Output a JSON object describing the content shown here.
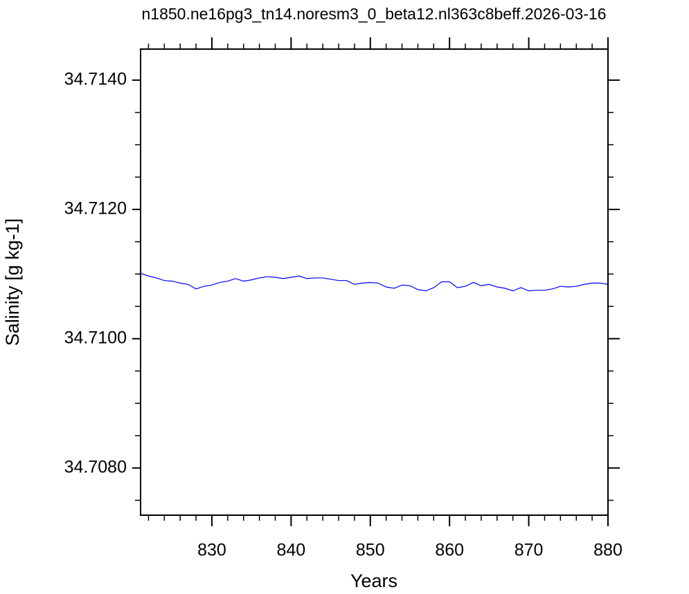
{
  "chart_data": {
    "type": "line",
    "title": "n1850.ne16pg3_tn14.noresm3_0_beta12.nl363c8beff.2026-03-16",
    "x_label": "Years",
    "y_label": "Salinity [g kg-1]",
    "x": [
      821,
      822,
      823,
      824,
      825,
      826,
      827,
      828,
      829,
      830,
      831,
      832,
      833,
      834,
      835,
      836,
      837,
      838,
      839,
      840,
      841,
      842,
      843,
      844,
      845,
      846,
      847,
      848,
      849,
      850,
      851,
      852,
      853,
      854,
      855,
      856,
      857,
      858,
      859,
      860,
      861,
      862,
      863,
      864,
      865,
      866,
      867,
      868,
      869,
      870,
      871,
      872,
      873,
      874,
      875,
      876,
      877,
      878,
      879,
      880
    ],
    "series": [
      {
        "name": "Salinity",
        "color": "#0000ff",
        "values": [
          34.71101,
          34.71097,
          34.71094,
          34.7109,
          34.71089,
          34.71086,
          34.71084,
          34.71077,
          34.71081,
          34.71083,
          34.71087,
          34.71089,
          34.71093,
          34.71089,
          34.71091,
          34.71094,
          34.71096,
          34.71095,
          34.71093,
          34.71095,
          34.71097,
          34.71093,
          34.71094,
          34.71094,
          34.71092,
          34.7109,
          34.7109,
          34.71084,
          34.71086,
          34.71087,
          34.71086,
          34.7108,
          34.71078,
          34.71083,
          34.71082,
          34.71076,
          34.71074,
          34.71079,
          34.71088,
          34.71088,
          34.71079,
          34.71081,
          34.71087,
          34.71082,
          34.71084,
          34.7108,
          34.71078,
          34.71074,
          34.71079,
          34.71074,
          34.71075,
          34.71075,
          34.71077,
          34.71081,
          34.7108,
          34.71081,
          34.71084,
          34.71086,
          34.71086,
          34.71084
        ]
      }
    ],
    "xlim": [
      821,
      880
    ],
    "ylim": [
      34.70727,
      34.71448
    ],
    "xticks": [
      830,
      840,
      850,
      860,
      870,
      880
    ],
    "yticks": [
      {
        "value": 34.708,
        "label": "34.7080"
      },
      {
        "value": 34.71,
        "label": "34.7100"
      },
      {
        "value": 34.712,
        "label": "34.7120"
      },
      {
        "value": 34.714,
        "label": "34.7140"
      }
    ],
    "xminorticks": [
      822,
      824,
      826,
      828,
      832,
      834,
      836,
      838,
      842,
      844,
      846,
      848,
      852,
      854,
      856,
      858,
      862,
      864,
      866,
      868,
      872,
      874,
      876,
      878
    ],
    "yminorticks": [
      34.7075,
      34.7085,
      34.709,
      34.7095,
      34.7105,
      34.711,
      34.7115,
      34.7125,
      34.713,
      34.7135
    ],
    "grid": false
  }
}
